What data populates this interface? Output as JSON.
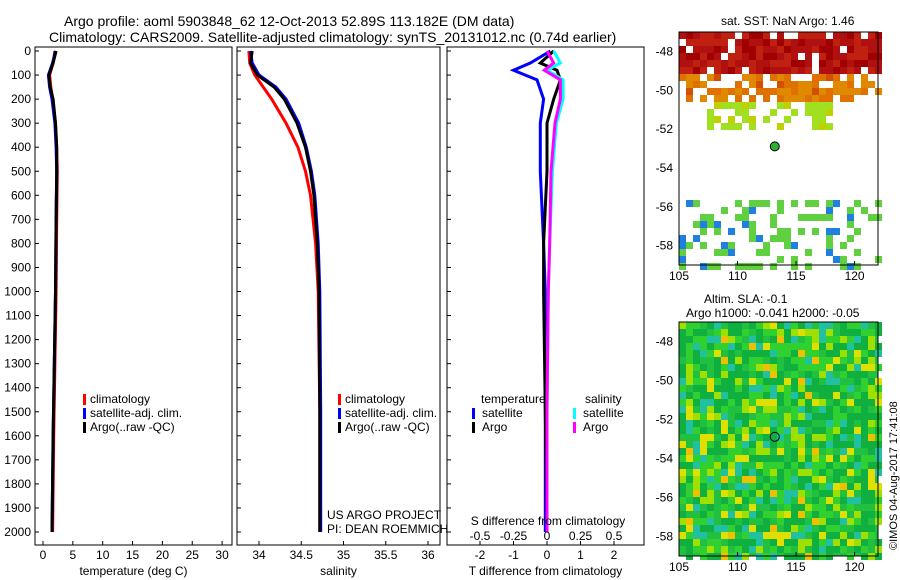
{
  "title_line1": "Argo profile: aoml 5903848_62 12-Oct-2013 52.89S 113.182E (DM data)",
  "title_line2": "Climatology: CARS2009. Satellite-adjusted climatology: synTS_20131012.nc (0.74d earlier)",
  "colors": {
    "climatology": "#ff0000",
    "satellite": "#0000ff",
    "argo": "#000000",
    "sal_satellite": "#00ffff",
    "sal_argo": "#ff00ff"
  },
  "chart_data": [
    {
      "type": "line",
      "title": "",
      "xlabel": "temperature (deg C)",
      "ylabel": "",
      "xlim": [
        -1,
        31
      ],
      "ylim": [
        2050,
        0
      ],
      "xticks": [
        0,
        5,
        10,
        15,
        20,
        25,
        30
      ],
      "yticks": [
        0,
        100,
        200,
        300,
        400,
        500,
        600,
        700,
        800,
        900,
        1000,
        1100,
        1200,
        1300,
        1400,
        1500,
        1600,
        1700,
        1800,
        1900,
        2000
      ],
      "legend": [
        "climatology",
        "satellite-adj. clim.",
        "Argo(..raw -QC)"
      ],
      "series": [
        {
          "name": "climatology",
          "color": "#ff0000",
          "depth": [
            0,
            50,
            100,
            150,
            200,
            300,
            400,
            500,
            700,
            1000,
            1300,
            1600,
            2000
          ],
          "values": [
            2.0,
            1.7,
            1.1,
            1.3,
            1.6,
            2.1,
            2.3,
            2.4,
            2.3,
            2.2,
            2.0,
            1.8,
            1.6
          ]
        },
        {
          "name": "satellite-adj. clim.",
          "color": "#0000ff",
          "depth": [
            0,
            50,
            100,
            150,
            200,
            300,
            400,
            500,
            700,
            1000,
            1300,
            1600,
            2000
          ],
          "values": [
            2.1,
            1.6,
            0.9,
            1.1,
            1.5,
            2.0,
            2.2,
            2.3,
            2.2,
            2.1,
            1.9,
            1.7,
            1.5
          ]
        },
        {
          "name": "Argo(..raw -QC)",
          "color": "#000000",
          "depth": [
            0,
            50,
            100,
            150,
            200,
            300,
            400,
            500,
            700,
            1000,
            1300,
            1600,
            2000
          ],
          "values": [
            2.2,
            1.7,
            1.0,
            1.2,
            1.7,
            2.1,
            2.3,
            2.3,
            2.2,
            2.1,
            1.9,
            1.7,
            1.5
          ]
        }
      ]
    },
    {
      "type": "line",
      "xlabel": "salinity",
      "xlim": [
        33.8,
        36.1
      ],
      "ylim": [
        2050,
        0
      ],
      "xticks": [
        34,
        34.5,
        35,
        35.5,
        36
      ],
      "legend": [
        "climatology",
        "satellite-adj. clim.",
        "Argo(..raw -QC)"
      ],
      "annotations": [
        "US ARGO PROJECT",
        "PI: DEAN ROEMMICH"
      ],
      "series": [
        {
          "name": "climatology",
          "color": "#ff0000",
          "depth": [
            0,
            50,
            100,
            150,
            200,
            300,
            400,
            500,
            600,
            800,
            1000,
            1500,
            2000
          ],
          "values": [
            33.88,
            33.89,
            33.95,
            34.05,
            34.15,
            34.32,
            34.46,
            34.55,
            34.61,
            34.67,
            34.7,
            34.72,
            34.72
          ]
        },
        {
          "name": "satellite-adj. clim.",
          "color": "#0000ff",
          "depth": [
            0,
            50,
            100,
            150,
            200,
            300,
            400,
            500,
            600,
            800,
            1000,
            1500,
            2000
          ],
          "values": [
            33.9,
            33.92,
            34.0,
            34.2,
            34.32,
            34.47,
            34.56,
            34.62,
            34.66,
            34.7,
            34.72,
            34.73,
            34.73
          ]
        },
        {
          "name": "Argo(..raw -QC)",
          "color": "#000000",
          "depth": [
            0,
            50,
            100,
            150,
            200,
            300,
            400,
            500,
            600,
            800,
            1000,
            1500,
            2000
          ],
          "values": [
            33.92,
            33.9,
            33.98,
            34.18,
            34.3,
            34.45,
            34.55,
            34.61,
            34.65,
            34.69,
            34.71,
            34.72,
            34.72
          ]
        }
      ]
    },
    {
      "type": "line",
      "xlabel": "T difference from climatology",
      "xlabel2": "S difference from climatology",
      "xlim": [
        -2.9,
        3
      ],
      "ylim": [
        2050,
        0
      ],
      "xticks": [
        -2,
        -1,
        0,
        1,
        2
      ],
      "xticks2": [
        -0.5,
        -0.25,
        0,
        0.25,
        0.5
      ],
      "legend_titles": [
        "temperature",
        "salinity"
      ],
      "legend": [
        "satellite",
        "Argo",
        "satellite",
        "Argo"
      ],
      "series": [
        {
          "name": "T satellite",
          "color": "#0000ff",
          "depth": [
            0,
            50,
            80,
            120,
            200,
            300,
            500,
            800,
            1000,
            1500,
            2000
          ],
          "values": [
            0.1,
            -0.5,
            -1.0,
            -0.3,
            -0.1,
            -0.2,
            -0.2,
            -0.1,
            -0.05,
            -0.05,
            -0.05
          ]
        },
        {
          "name": "T Argo",
          "color": "#000000",
          "depth": [
            0,
            50,
            80,
            120,
            200,
            300,
            500,
            800,
            1000,
            1500,
            2000
          ],
          "values": [
            0.2,
            -0.2,
            0.3,
            0.4,
            0.2,
            0.0,
            0.0,
            -0.1,
            -0.1,
            -0.05,
            0.0
          ]
        },
        {
          "name": "S satellite",
          "color": "#00ffff",
          "depth": [
            0,
            50,
            80,
            120,
            200,
            300,
            500,
            800,
            1000,
            1500,
            2000
          ],
          "values": [
            0.05,
            0.1,
            0.0,
            0.12,
            0.12,
            0.07,
            0.04,
            0.02,
            0.01,
            0.0,
            0.0
          ]
        },
        {
          "name": "S Argo",
          "color": "#ff00ff",
          "depth": [
            0,
            50,
            80,
            120,
            200,
            300,
            500,
            800,
            1000,
            1500,
            2000
          ],
          "values": [
            0.0,
            0.05,
            -0.02,
            0.1,
            0.1,
            0.06,
            0.03,
            0.02,
            0.01,
            0.0,
            0.0
          ]
        }
      ]
    }
  ],
  "sst_map": {
    "title": "sat. SST: NaN Argo: 1.46",
    "xticks": [
      "105",
      "110",
      "115",
      "120"
    ],
    "yticks": [
      "-48",
      "-50",
      "-52",
      "-54",
      "-56",
      "-58"
    ]
  },
  "sla_map": {
    "title1": "Altim. SLA: -0.1",
    "title2": "Argo h1000: -0.041 h2000: -0.05",
    "xticks": [
      "105",
      "110",
      "115",
      "120"
    ],
    "yticks": [
      "-48",
      "-50",
      "-52",
      "-54",
      "-56",
      "-58"
    ]
  },
  "float_position": {
    "lon": 113.182,
    "lat": -52.89
  },
  "watermark": "©IMOS 04-Aug-2017 17:41:08"
}
